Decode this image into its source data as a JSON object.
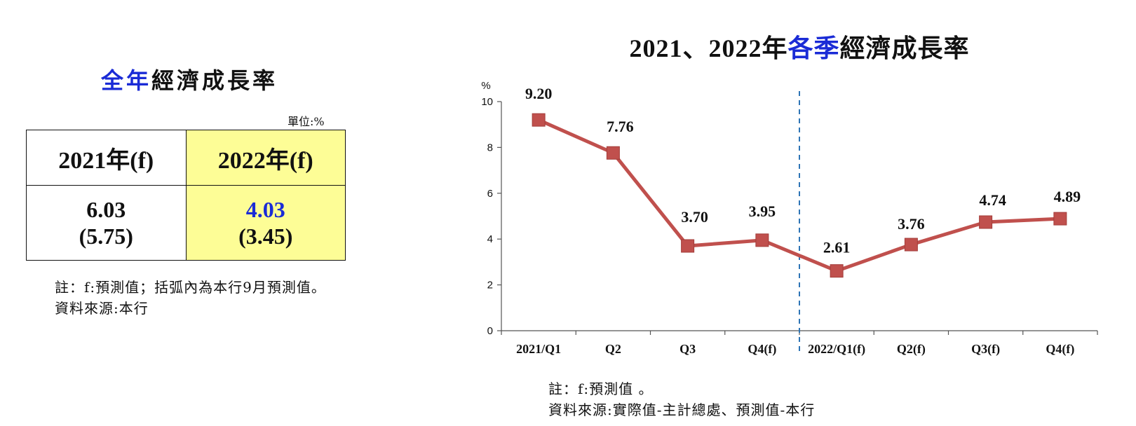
{
  "left": {
    "title_blue": "全年",
    "title_black": "經濟成長率",
    "unit": "單位:%",
    "headers": [
      "2021年(f)",
      "2022年(f)"
    ],
    "values": [
      {
        "main": "6.03",
        "prev": "(5.75)"
      },
      {
        "main": "4.03",
        "prev": "(3.45)"
      }
    ],
    "note1": "註：f:預測值；括弧內為本行9月預測值。",
    "note2": "資料來源:本行"
  },
  "right": {
    "title_prefix": "2021、2022年",
    "title_blue": "各季",
    "title_suffix": "經濟成長率",
    "note1": "註：f:預測值 。",
    "note2": "資料來源:實際值-主計總處、預測值-本行"
  },
  "chart_data": {
    "type": "line",
    "categories": [
      "2021/Q1",
      "Q2",
      "Q3",
      "Q4(f)",
      "2022/Q1(f)",
      "Q2(f)",
      "Q3(f)",
      "Q4(f)"
    ],
    "values": [
      9.2,
      7.76,
      3.7,
      3.95,
      2.61,
      3.76,
      4.74,
      4.89
    ],
    "data_labels": [
      "9.20",
      "7.76",
      "3.70",
      "3.95",
      "2.61",
      "3.76",
      "4.74",
      "4.89"
    ],
    "ylabel": "%",
    "ylim": [
      0,
      10
    ],
    "yticks": [
      "0",
      "2",
      "4",
      "6",
      "8",
      "10"
    ],
    "grid": false,
    "series_color": "#c0504d",
    "divider_color": "#2e75b6",
    "divider_between": [
      3,
      4
    ]
  }
}
